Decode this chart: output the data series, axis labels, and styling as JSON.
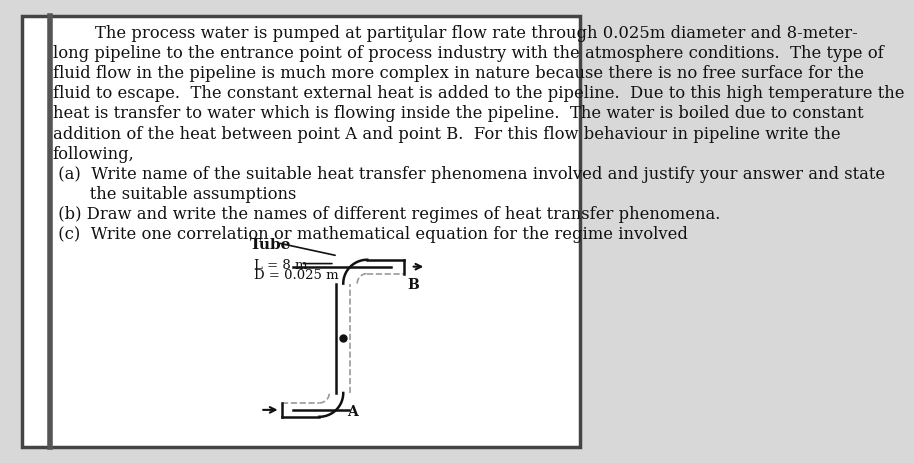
{
  "bg_color": "#d8d8d8",
  "page_bg": "#ffffff",
  "border_color": "#444444",
  "text_color": "#111111",
  "para_lines": [
    "        The process water is pumped at partiţular flow rate through 0.025m diameter and 8-meter-",
    "long pipeline to the entrance point of process industry with the atmosphere conditions.  The type of",
    "fluid flow in the pipeline is much more complex in nature because there is no free surface for the",
    "fluid to escape.  The constant external heat is added to the pipeline.  Due to this high temperature the",
    "heat is transfer to water which is flowing inside the pipeline.  The water is boiled due to constant",
    "addition of the heat between point A and point B.  For this flow behaviour in pipeline write the",
    "following,"
  ],
  "item_a_1": " (a)  Write name of the suitable heat transfer phenomena involved and justify your answer and state",
  "item_a_2": "       the suitable assumptions",
  "item_b": " (b) Draw and write the names of different regimes of heat transfer phenomena.",
  "item_c": " (c)  Write one correlation or mathematical equation for the regime involved",
  "tube_label": "Tube",
  "L_label": "L = 8 m",
  "D_label": "D = 0.025 m",
  "point_A": "A",
  "point_B": "B",
  "body_fs": 11.8,
  "diagram_fs": 9.5
}
